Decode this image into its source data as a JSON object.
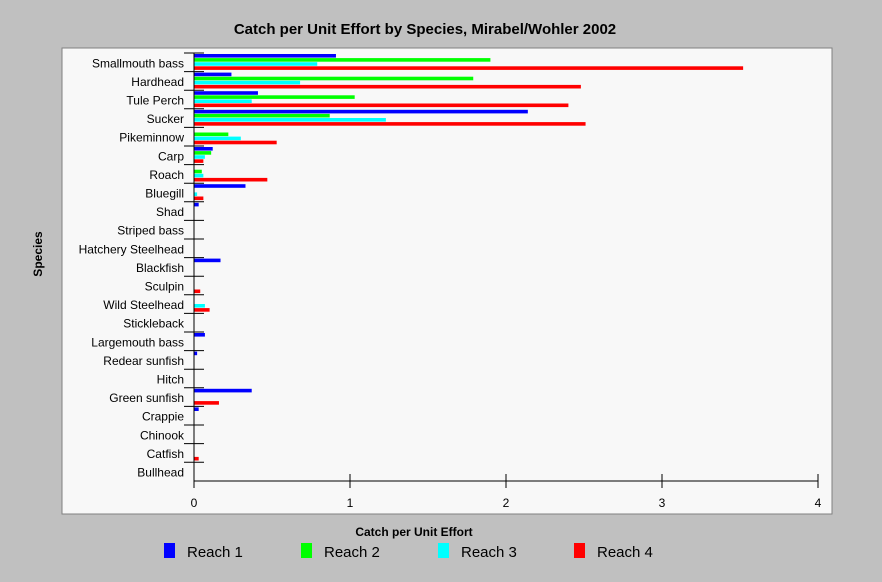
{
  "chart_data": {
    "type": "bar",
    "orientation": "horizontal",
    "title": "Catch per Unit Effort by Species, Mirabel/Wohler 2002",
    "xlabel": "Catch per Unit Effort",
    "ylabel": "Species",
    "xlim": [
      0,
      4
    ],
    "xticks": [
      0,
      1,
      2,
      3,
      4
    ],
    "legend_position": "bottom",
    "categories": [
      "Smallmouth bass",
      "Hardhead",
      "Tule Perch",
      "Sucker",
      "Pikeminnow",
      "Carp",
      "Roach",
      "Bluegill",
      "Shad",
      "Striped bass",
      "Hatchery Steelhead",
      "Blackfish",
      "Sculpin",
      "Wild Steelhead",
      "Stickleback",
      "Largemouth bass",
      "Redear sunfish",
      "Hitch",
      "Green sunfish",
      "Crappie",
      "Chinook",
      "Catfish",
      "Bullhead"
    ],
    "series": [
      {
        "name": "Reach 1",
        "color": "#0000ff",
        "values": [
          0.91,
          0.24,
          0.41,
          2.14,
          0.0,
          0.12,
          0.0,
          0.33,
          0.03,
          0.0,
          0.0,
          0.17,
          0.0,
          0.0,
          0.0,
          0.07,
          0.02,
          0.0,
          0.37,
          0.03,
          0.0,
          0.0,
          0.0
        ]
      },
      {
        "name": "Reach 2",
        "color": "#00ff00",
        "values": [
          1.9,
          1.79,
          1.03,
          0.87,
          0.22,
          0.11,
          0.05,
          0.0,
          0.0,
          0.0,
          0.0,
          0.0,
          0.0,
          0.0,
          0.0,
          0.0,
          0.0,
          0.0,
          0.0,
          0.0,
          0.0,
          0.0,
          0.0
        ]
      },
      {
        "name": "Reach 3",
        "color": "#00ffff",
        "values": [
          0.79,
          0.68,
          0.37,
          1.23,
          0.3,
          0.07,
          0.06,
          0.02,
          0.0,
          0.0,
          0.0,
          0.0,
          0.0,
          0.07,
          0.0,
          0.0,
          0.0,
          0.0,
          0.0,
          0.0,
          0.0,
          0.0,
          0.0
        ]
      },
      {
        "name": "Reach 4",
        "color": "#ff0000",
        "values": [
          3.52,
          2.48,
          2.4,
          2.51,
          0.53,
          0.06,
          0.47,
          0.06,
          0.0,
          0.0,
          0.0,
          0.0,
          0.04,
          0.1,
          0.0,
          0.0,
          0.0,
          0.0,
          0.16,
          0.0,
          0.0,
          0.03,
          0.0
        ]
      }
    ]
  }
}
